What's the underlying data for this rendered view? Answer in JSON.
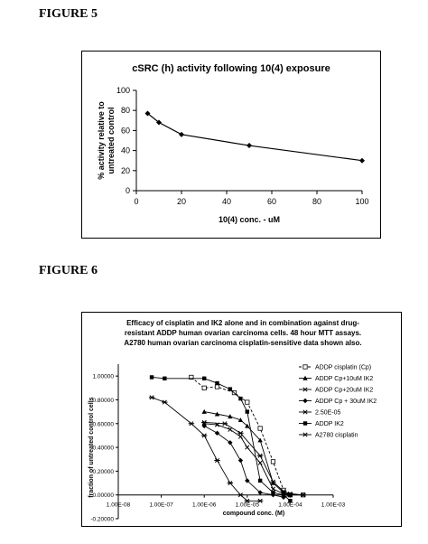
{
  "figure5": {
    "label": "FIGURE 5",
    "chart_data": {
      "type": "line",
      "title": "cSRC (h) activity following 10(4) exposure",
      "xlabel": "10(4) conc. - uM",
      "ylabel_lines": [
        "% activity relative to",
        "untreated control"
      ],
      "xlim": [
        0,
        100
      ],
      "ylim": [
        0,
        100
      ],
      "xticks": [
        0,
        20,
        40,
        60,
        80,
        100
      ],
      "yticks": [
        0,
        20,
        40,
        60,
        80,
        100
      ],
      "grid": false,
      "x": [
        5,
        10,
        20,
        50,
        100
      ],
      "y": [
        77,
        68,
        56,
        45,
        30
      ]
    }
  },
  "figure6": {
    "label": "FIGURE 6",
    "chart_data": {
      "type": "line",
      "x_scale": "log",
      "title_lines": [
        "Efficacy of cisplatin and IK2 alone and in combination against drug-",
        "resistant ADDP human ovarian carcinoma cells. 48 hour MTT assays.",
        "A2780 human ovarian carcinoma cisplatin-sensitive data shown also."
      ],
      "xlabel": "compound conc. (M)",
      "ylabel": "fraction of untreated control cells",
      "xlim": [
        1e-08,
        0.001
      ],
      "ylim": [
        -0.2,
        1.1
      ],
      "xticks": [
        1e-08,
        1e-07,
        1e-06,
        1e-05,
        0.0001,
        0.001
      ],
      "xtick_labels": [
        "1.00E-08",
        "1.00E-07",
        "1.00E-06",
        "1.00E-05",
        "1.00E-04",
        "1.00E-03"
      ],
      "yticks": [
        -0.2,
        0,
        0.2,
        0.4,
        0.6,
        0.8,
        1.0
      ],
      "ytick_labels": [
        "-0.20000",
        "0.00000",
        "0.20000",
        "0.40000",
        "0.60000",
        "0.80000",
        "1.00000"
      ],
      "legend_position": "right",
      "grid": false,
      "series": [
        {
          "name": "ADDP cisplatin (Cp)",
          "marker": "square",
          "dash": "3,2",
          "x": [
            5e-07,
            1e-06,
            2e-06,
            5e-06,
            1e-05,
            2e-05,
            4e-05,
            7e-05,
            0.0001,
            0.0002
          ],
          "y": [
            0.99,
            0.9,
            0.91,
            0.86,
            0.78,
            0.56,
            0.28,
            0.04,
            0.0,
            0.0
          ]
        },
        {
          "name": "ADDP Cp+10uM IK2",
          "marker": "triangle",
          "dash": "",
          "x": [
            1e-06,
            2e-06,
            4e-06,
            7e-06,
            1e-05,
            2e-05,
            4e-05,
            7e-05,
            0.0001
          ],
          "y": [
            0.7,
            0.68,
            0.66,
            0.63,
            0.58,
            0.46,
            0.1,
            0.02,
            0.0
          ]
        },
        {
          "name": "ADDP Cp+20uM IK2",
          "marker": "x",
          "dash": "",
          "x": [
            1e-06,
            2e-06,
            4e-06,
            7e-06,
            1e-05,
            2e-05,
            4e-05,
            7e-05,
            0.0001,
            0.0002
          ],
          "y": [
            0.6,
            0.59,
            0.55,
            0.49,
            0.4,
            0.27,
            0.05,
            0.01,
            0.0,
            0.0
          ]
        },
        {
          "name": "ADDP Cp + 30uM IK2",
          "marker": "diamond",
          "dash": "",
          "x": [
            1e-06,
            2e-06,
            4e-06,
            7e-06,
            1e-05,
            2e-05,
            4e-05,
            7e-05,
            0.0001
          ],
          "y": [
            0.58,
            0.52,
            0.44,
            0.29,
            0.12,
            0.02,
            0.0,
            -0.02,
            0.0
          ]
        },
        {
          "name": "2.50E-05",
          "marker": "asterisk",
          "dash": "",
          "x": [
            1e-06,
            3e-06,
            7e-06,
            2e-05,
            4e-05,
            7e-05,
            0.0001,
            0.0002
          ],
          "y": [
            0.61,
            0.6,
            0.52,
            0.33,
            0.11,
            0.03,
            0.01,
            0.0
          ]
        },
        {
          "name": "ADDP IK2",
          "marker": "square-filled",
          "dash": "",
          "x": [
            6e-08,
            1.2e-07,
            1e-06,
            2e-06,
            4e-06,
            7e-06,
            1e-05,
            2e-05,
            4e-05,
            7e-05,
            0.0001
          ],
          "y": [
            0.99,
            0.98,
            0.98,
            0.94,
            0.89,
            0.81,
            0.7,
            0.12,
            0.02,
            0.0,
            -0.05
          ]
        },
        {
          "name": "A2780 cisplatin",
          "marker": "asterisk",
          "dash": "",
          "x": [
            6e-08,
            1.2e-07,
            5e-07,
            1e-06,
            2e-06,
            4e-06,
            7e-06,
            1e-05,
            2e-05
          ],
          "y": [
            0.82,
            0.78,
            0.6,
            0.5,
            0.29,
            0.1,
            0.0,
            -0.05,
            -0.05
          ]
        }
      ]
    }
  }
}
